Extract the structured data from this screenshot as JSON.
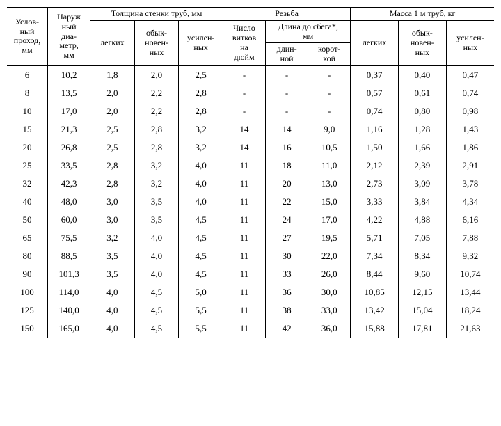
{
  "headers": {
    "h_pass": "Услов-\nный\nпроход,\nмм",
    "h_diam": "Наруж\nный\nдиа-\nметр,\nмм",
    "h_wall": "Толщина стенки труб, мм",
    "h_thread": "Резьба",
    "h_mass": "Масса 1 м труб, кг",
    "h_light": "легких",
    "h_ord": "обык-\nновен-\nных",
    "h_rein": "усилен-\nных",
    "h_turns": "Число\nвитков\nна\nдюйм",
    "h_runlen": "Длина до сбега*,\nмм",
    "h_long": "длин-\nной",
    "h_short": "корот-\nкой"
  },
  "rows": [
    [
      "6",
      "10,2",
      "1,8",
      "2,0",
      "2,5",
      "-",
      "-",
      "-",
      "0,37",
      "0,40",
      "0,47"
    ],
    [
      "8",
      "13,5",
      "2,0",
      "2,2",
      "2,8",
      "-",
      "-",
      "-",
      "0,57",
      "0,61",
      "0,74"
    ],
    [
      "10",
      "17,0",
      "2,0",
      "2,2",
      "2,8",
      "-",
      "-",
      "-",
      "0,74",
      "0,80",
      "0,98"
    ],
    [
      "15",
      "21,3",
      "2,5",
      "2,8",
      "3,2",
      "14",
      "14",
      "9,0",
      "1,16",
      "1,28",
      "1,43"
    ],
    [
      "20",
      "26,8",
      "2,5",
      "2,8",
      "3,2",
      "14",
      "16",
      "10,5",
      "1,50",
      "1,66",
      "1,86"
    ],
    [
      "25",
      "33,5",
      "2,8",
      "3,2",
      "4,0",
      "11",
      "18",
      "11,0",
      "2,12",
      "2,39",
      "2,91"
    ],
    [
      "32",
      "42,3",
      "2,8",
      "3,2",
      "4,0",
      "11",
      "20",
      "13,0",
      "2,73",
      "3,09",
      "3,78"
    ],
    [
      "40",
      "48,0",
      "3,0",
      "3,5",
      "4,0",
      "11",
      "22",
      "15,0",
      "3,33",
      "3,84",
      "4,34"
    ],
    [
      "50",
      "60,0",
      "3,0",
      "3,5",
      "4,5",
      "11",
      "24",
      "17,0",
      "4,22",
      "4,88",
      "6,16"
    ],
    [
      "65",
      "75,5",
      "3,2",
      "4,0",
      "4,5",
      "11",
      "27",
      "19,5",
      "5,71",
      "7,05",
      "7,88"
    ],
    [
      "80",
      "88,5",
      "3,5",
      "4,0",
      "4,5",
      "11",
      "30",
      "22,0",
      "7,34",
      "8,34",
      "9,32"
    ],
    [
      "90",
      "101,3",
      "3,5",
      "4,0",
      "4,5",
      "11",
      "33",
      "26,0",
      "8,44",
      "9,60",
      "10,74"
    ],
    [
      "100",
      "114,0",
      "4,0",
      "4,5",
      "5,0",
      "11",
      "36",
      "30,0",
      "10,85",
      "12,15",
      "13,44"
    ],
    [
      "125",
      "140,0",
      "4,0",
      "4,5",
      "5,5",
      "11",
      "38",
      "33,0",
      "13,42",
      "15,04",
      "18,24"
    ],
    [
      "150",
      "165,0",
      "4,0",
      "4,5",
      "5,5",
      "11",
      "42",
      "36,0",
      "15,88",
      "17,81",
      "21,63"
    ]
  ]
}
